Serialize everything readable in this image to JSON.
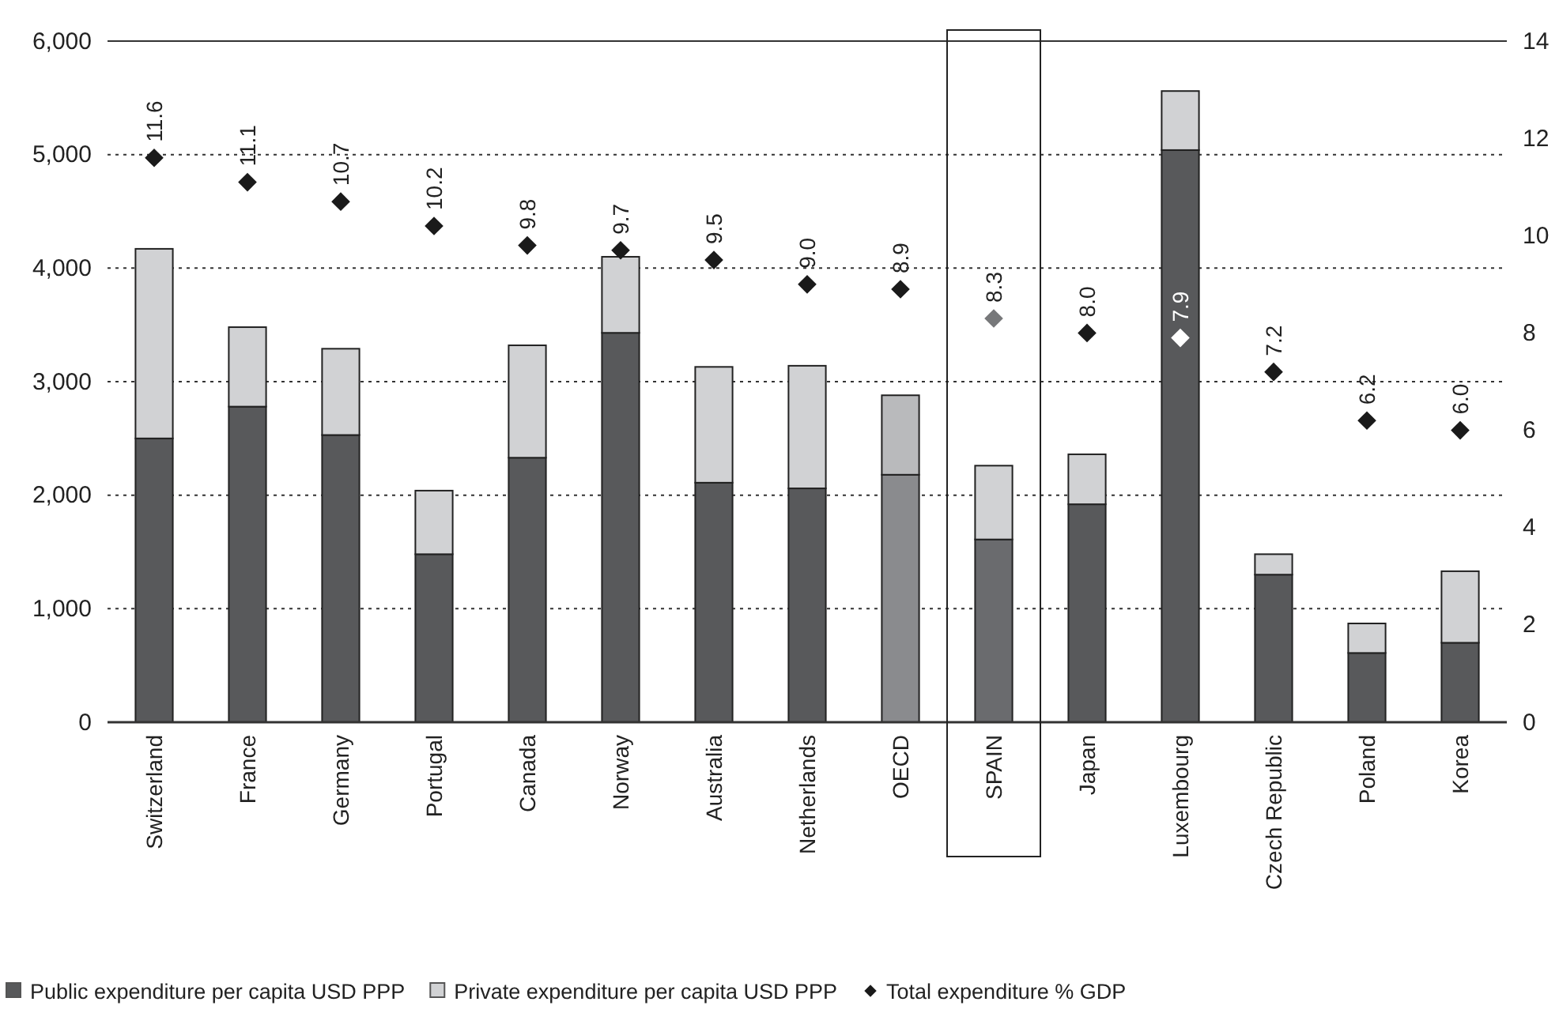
{
  "chart_data": {
    "type": "bar",
    "stacked": true,
    "categories": [
      "Switzerland",
      "France",
      "Germany",
      "Portugal",
      "Canada",
      "Norway",
      "Australia",
      "Netherlands",
      "OECD",
      "SPAIN",
      "Japan",
      "Luxembourg",
      "Czech Republic",
      "Poland",
      "Korea"
    ],
    "series": [
      {
        "name": "Public expenditure per capita USD PPP",
        "color": "#58595b",
        "colors": [
          "#58595b",
          "#58595b",
          "#58595b",
          "#58595b",
          "#58595b",
          "#58595b",
          "#58595b",
          "#58595b",
          "#8a8b8e",
          "#6a6b6e",
          "#58595b",
          "#58595b",
          "#58595b",
          "#58595b",
          "#58595b"
        ],
        "values": [
          2500,
          2780,
          2530,
          1480,
          2330,
          3430,
          2110,
          2060,
          2180,
          1610,
          1920,
          5040,
          1300,
          610,
          700
        ]
      },
      {
        "name": "Private expenditure per capita USD PPP",
        "color": "#d1d2d4",
        "colors": [
          "#d1d2d4",
          "#d1d2d4",
          "#d1d2d4",
          "#d1d2d4",
          "#d1d2d4",
          "#d1d2d4",
          "#d1d2d4",
          "#d1d2d4",
          "#b9babc",
          "#d1d2d4",
          "#d1d2d4",
          "#d1d2d4",
          "#d1d2d4",
          "#d1d2d4",
          "#d1d2d4"
        ],
        "values": [
          1670,
          700,
          760,
          560,
          990,
          670,
          1020,
          1080,
          700,
          650,
          440,
          520,
          180,
          260,
          630
        ]
      },
      {
        "name": "Total expenditure % GDP",
        "type": "scatter",
        "axis": "y2",
        "marker": "diamond",
        "color": "#1a1a1a",
        "colors": [
          "#1a1a1a",
          "#1a1a1a",
          "#1a1a1a",
          "#1a1a1a",
          "#1a1a1a",
          "#1a1a1a",
          "#1a1a1a",
          "#1a1a1a",
          "#1a1a1a",
          "#77787a",
          "#1a1a1a",
          "#ffffff",
          "#1a1a1a",
          "#1a1a1a",
          "#1a1a1a"
        ],
        "values": [
          11.6,
          11.1,
          10.7,
          10.2,
          9.8,
          9.7,
          9.5,
          9.0,
          8.9,
          8.3,
          8.0,
          7.9,
          7.2,
          6.2,
          6.0
        ],
        "value_labels": [
          "11.6",
          "11.1",
          "10.7",
          "10.2",
          "9.8",
          "9.7",
          "9.5",
          "9.0",
          "8.9",
          "8.3",
          "8.0",
          "7.9",
          "7.2",
          "6.2",
          "6.0"
        ]
      }
    ],
    "ylim": [
      0,
      6000
    ],
    "yticks": [
      {
        "value": 0,
        "label": "0"
      },
      {
        "value": 1000,
        "label": "1,000"
      },
      {
        "value": 2000,
        "label": "2,000"
      },
      {
        "value": 3000,
        "label": "3,000"
      },
      {
        "value": 4000,
        "label": "4,000"
      },
      {
        "value": 5000,
        "label": "5,000"
      },
      {
        "value": 6000,
        "label": "6,000"
      }
    ],
    "y2lim": [
      0,
      14
    ],
    "y2ticks": [
      0,
      2,
      4,
      6,
      8,
      10,
      12,
      14
    ],
    "grid": "y",
    "legend": "bottom"
  }
}
